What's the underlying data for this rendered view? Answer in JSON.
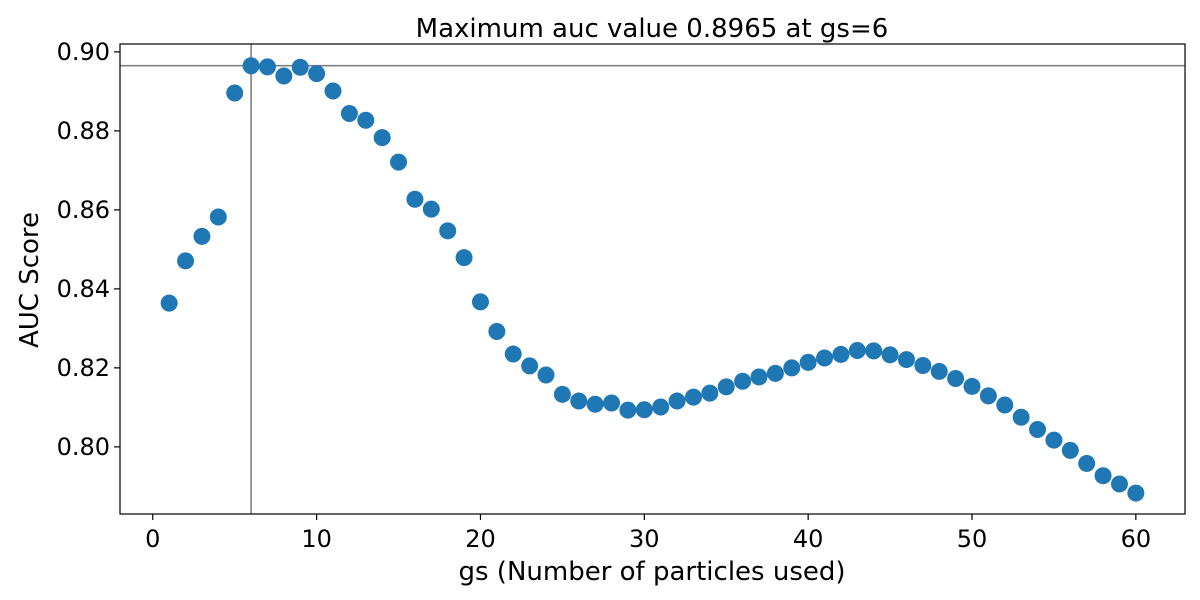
{
  "chart_data": {
    "type": "scatter",
    "title": "Maximum auc value 0.8965 at gs=6",
    "xlabel": "gs (Number of particles used)",
    "ylabel": "AUC Score",
    "xlim": [
      -2,
      63
    ],
    "ylim": [
      0.783,
      0.902
    ],
    "xticks": [
      0,
      10,
      20,
      30,
      40,
      50,
      60
    ],
    "xtick_labels": [
      "0",
      "10",
      "20",
      "30",
      "40",
      "50",
      "60"
    ],
    "yticks": [
      0.8,
      0.82,
      0.84,
      0.86,
      0.88,
      0.9
    ],
    "ytick_labels": [
      "0.80",
      "0.82",
      "0.84",
      "0.86",
      "0.88",
      "0.90"
    ],
    "grid": false,
    "marker_color": "#1f77b4",
    "reference_line_color": "#808080",
    "reference_lines": {
      "x": 6,
      "y": 0.8965
    },
    "series": [
      {
        "x": [
          1,
          2,
          3,
          4,
          5,
          6,
          7,
          8,
          9,
          10,
          11,
          12,
          13,
          14,
          15,
          16,
          17,
          18,
          19,
          20,
          21,
          22,
          23,
          24,
          25,
          26,
          27,
          28,
          29,
          30,
          31,
          32,
          33,
          34,
          35,
          36,
          37,
          38,
          39,
          40,
          41,
          42,
          43,
          44,
          45,
          46,
          47,
          48,
          49,
          50,
          51,
          52,
          53,
          54,
          55,
          56,
          57,
          58,
          59,
          60
        ],
        "y": [
          0.8364,
          0.8471,
          0.8533,
          0.8582,
          0.8896,
          0.8965,
          0.8962,
          0.8939,
          0.8961,
          0.8945,
          0.8901,
          0.8844,
          0.8827,
          0.8783,
          0.8721,
          0.8627,
          0.8602,
          0.8547,
          0.8479,
          0.8367,
          0.8292,
          0.8235,
          0.8205,
          0.8182,
          0.8133,
          0.8116,
          0.8108,
          0.8111,
          0.8093,
          0.8094,
          0.8101,
          0.8116,
          0.8126,
          0.8136,
          0.8152,
          0.8166,
          0.8177,
          0.8186,
          0.82,
          0.8214,
          0.8225,
          0.8234,
          0.8244,
          0.8243,
          0.8233,
          0.8221,
          0.8206,
          0.8191,
          0.8173,
          0.8153,
          0.8129,
          0.8106,
          0.8075,
          0.8044,
          0.8017,
          0.7991,
          0.7958,
          0.7927,
          0.7906,
          0.7883
        ]
      }
    ]
  }
}
